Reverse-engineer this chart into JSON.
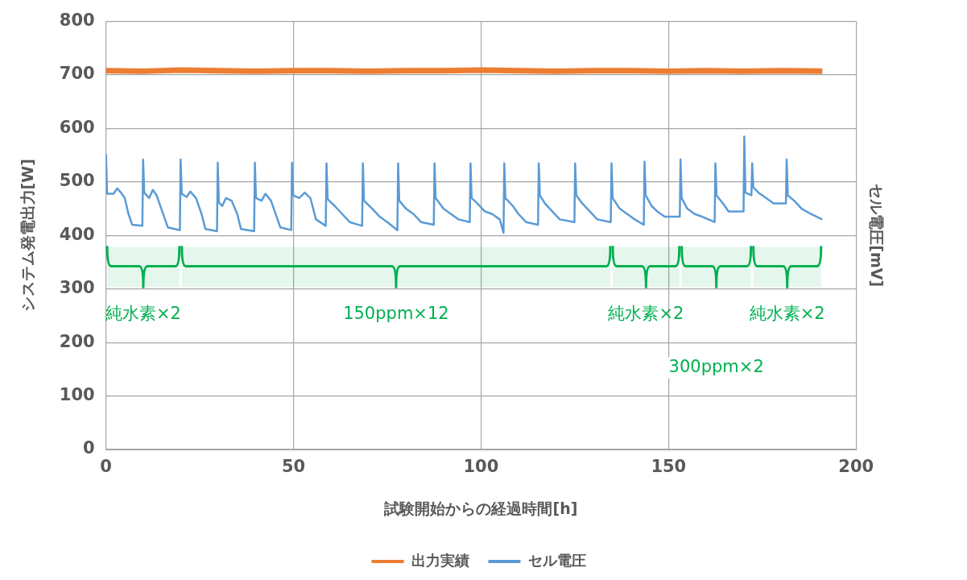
{
  "chart_data": {
    "type": "line",
    "xlabel": "試験開始からの経過時間[h]",
    "ylabel": "システム発電出力[W]",
    "y2label": "セル電圧[mV]",
    "xlim": [
      0,
      200
    ],
    "xticks": [
      0,
      50,
      100,
      150,
      200
    ],
    "ylim": [
      0,
      800
    ],
    "yticks": [
      0,
      100,
      200,
      300,
      400,
      500,
      600,
      700,
      800
    ],
    "grid": true,
    "legend": "bottom",
    "marker": "none",
    "line_style": "solid",
    "series": [
      {
        "name": "出力実績",
        "color": "#ed7d31",
        "x": [
          0,
          10,
          20,
          30,
          40,
          50,
          60,
          70,
          80,
          90,
          100,
          110,
          120,
          130,
          140,
          150,
          160,
          170,
          180,
          191
        ],
        "values": [
          708,
          707,
          709,
          708,
          707,
          708,
          708,
          707,
          708,
          708,
          709,
          708,
          707,
          708,
          708,
          707,
          708,
          707,
          708,
          707
        ]
      },
      {
        "name": "セル電圧",
        "color": "#5b9bd5",
        "x": [
          0,
          0.3,
          2,
          3,
          4,
          5,
          6,
          7,
          9.7,
          9.9,
          10.2,
          11.5,
          12.5,
          13.5,
          15,
          16.5,
          19.7,
          19.9,
          20.2,
          21.5,
          22.5,
          24,
          25.5,
          26.5,
          29.6,
          29.8,
          30.1,
          31,
          32,
          33.5,
          35,
          36,
          39.5,
          39.7,
          40,
          41.5,
          42.5,
          44,
          45.5,
          46.5,
          49.4,
          49.6,
          49.9,
          51.5,
          53,
          54.5,
          56,
          58.6,
          58.8,
          59.1,
          61,
          63,
          65,
          68.3,
          68.5,
          68.8,
          71,
          73,
          75,
          77.7,
          77.9,
          78.2,
          80,
          82,
          84,
          87.4,
          87.6,
          87.9,
          90,
          92,
          94,
          97,
          97.2,
          97.5,
          99,
          101,
          103,
          105,
          106,
          106.2,
          106.5,
          108.5,
          110,
          112,
          115.2,
          115.4,
          115.7,
          117,
          119,
          121,
          124.9,
          125.1,
          125.4,
          127,
          129,
          131,
          134.6,
          134.8,
          135.1,
          137,
          139,
          141,
          143.4,
          143.6,
          143.9,
          145.5,
          147,
          149,
          153,
          153.2,
          153.5,
          155,
          157,
          159,
          162.3,
          162.5,
          162.8,
          164.5,
          166,
          170,
          170.2,
          170.5,
          172.1,
          172.3,
          172.6,
          174,
          176,
          178,
          181.3,
          181.5,
          181.8,
          183.5,
          185.5,
          188,
          191
        ],
        "values": [
          552,
          478,
          478,
          488,
          480,
          470,
          440,
          420,
          418,
          542,
          480,
          470,
          485,
          475,
          445,
          415,
          410,
          542,
          478,
          472,
          482,
          470,
          440,
          412,
          408,
          536,
          462,
          455,
          470,
          465,
          440,
          412,
          408,
          536,
          470,
          465,
          478,
          465,
          435,
          415,
          410,
          536,
          475,
          470,
          480,
          470,
          430,
          418,
          535,
          468,
          455,
          440,
          425,
          418,
          535,
          465,
          450,
          435,
          425,
          410,
          535,
          465,
          450,
          440,
          425,
          420,
          535,
          470,
          450,
          440,
          430,
          425,
          535,
          470,
          460,
          445,
          440,
          430,
          405,
          535,
          470,
          455,
          440,
          425,
          420,
          535,
          475,
          460,
          445,
          430,
          425,
          535,
          475,
          460,
          445,
          430,
          425,
          535,
          470,
          450,
          440,
          430,
          420,
          538,
          475,
          455,
          445,
          435,
          435,
          542,
          470,
          450,
          440,
          435,
          425,
          535,
          475,
          460,
          445,
          445,
          585,
          480,
          475,
          535,
          490,
          480,
          470,
          460,
          460,
          542,
          475,
          465,
          450,
          440,
          430
        ]
      }
    ],
    "bands": [
      {
        "axis": "x",
        "from": 0,
        "to": 19.9,
        "label": "純水素×2",
        "color": "#00b050"
      },
      {
        "axis": "x",
        "from": 19.9,
        "to": 134.8,
        "label": "150ppm×12",
        "color": "#00b050"
      },
      {
        "axis": "x",
        "from": 134.8,
        "to": 153.2,
        "label": "純水素×2",
        "color": "#00b050"
      },
      {
        "axis": "x",
        "from": 153.2,
        "to": 172.3,
        "label": "300ppm×2",
        "color": "#00b050"
      },
      {
        "axis": "x",
        "from": 172.3,
        "to": 191,
        "label": "純水素×2",
        "color": "#00b050"
      }
    ]
  }
}
